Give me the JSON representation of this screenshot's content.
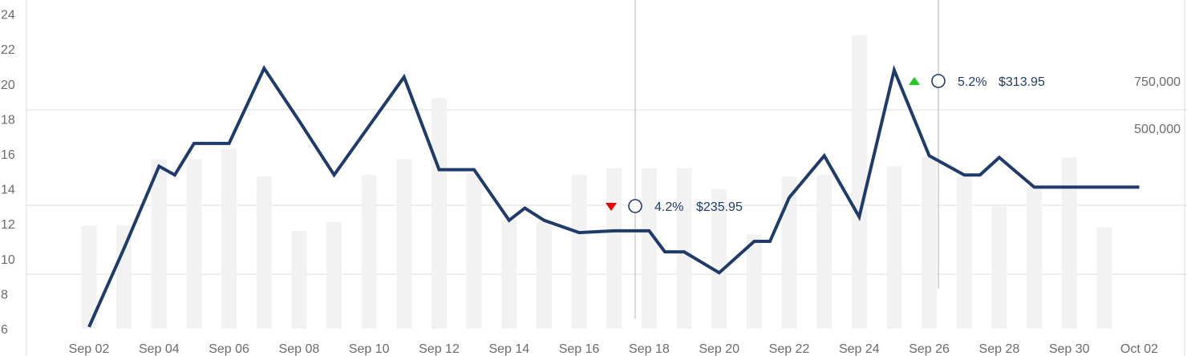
{
  "chart_data": {
    "type": "line",
    "title": "",
    "xlabel": "",
    "ylabel": "",
    "ylim": [
      6,
      24
    ],
    "y_ticks": [
      6,
      8,
      10,
      12,
      14,
      16,
      18,
      20,
      22,
      24
    ],
    "volume_ticks": [
      "750,000",
      "500,000"
    ],
    "grid": true,
    "x_tick_labels": [
      "Sep 02",
      "Sep 04",
      "Sep 06",
      "Sep 08",
      "Sep 10",
      "Sep 12",
      "Sep 14",
      "Sep 16",
      "Sep 18",
      "Sep 20",
      "Sep 22",
      "Sep 24",
      "Sep 26",
      "Sep 28",
      "Sep 30",
      "Oct 02"
    ],
    "colors": {
      "line": "#1f3b6b",
      "bar": "#f2f2f2",
      "grid": "#dcdcdc",
      "crosshair": "#cccccc",
      "up": "#22cc22",
      "down": "#ee0000",
      "tick_text": "#6b6b6b"
    },
    "price_series": {
      "x": [
        "Sep 02",
        "Sep 03",
        "Sep 04",
        "Sep 04 mid",
        "Sep 05",
        "Sep 06",
        "Sep 07",
        "Sep 08",
        "Sep 09",
        "Sep 10",
        "Sep 11",
        "Sep 12",
        "Sep 13",
        "Sep 14",
        "Sep 14 mid",
        "Sep 15",
        "Sep 16",
        "Sep 17",
        "Sep 18",
        "Sep 18 mid",
        "Sep 19",
        "Sep 20",
        "Sep 21",
        "Sep 21 mid",
        "Sep 22",
        "Sep 23",
        "Sep 24",
        "Sep 25",
        "Sep 26",
        "Sep 27",
        "Sep 27 mid",
        "Sep 28",
        "Sep 29",
        "Sep 30",
        "Oct 01",
        "Oct 02"
      ],
      "values": [
        6.1,
        10.6,
        15.3,
        14.8,
        16.6,
        16.6,
        20.9,
        17.9,
        14.8,
        17.6,
        20.4,
        15.1,
        15.1,
        12.2,
        12.9,
        12.2,
        11.5,
        11.6,
        11.6,
        10.4,
        10.4,
        9.2,
        11.0,
        11.0,
        13.5,
        15.9,
        12.4,
        20.8,
        15.9,
        14.8,
        14.8,
        15.8,
        14.1,
        14.1,
        14.1,
        14.1
      ]
    },
    "volume_series": {
      "x": [
        "Sep 02",
        "Sep 03",
        "Sep 04",
        "Sep 05",
        "Sep 06",
        "Sep 07",
        "Sep 08",
        "Sep 09",
        "Sep 10",
        "Sep 11",
        "Sep 12",
        "Sep 13",
        "Sep 14",
        "Sep 15",
        "Sep 16",
        "Sep 17",
        "Sep 18",
        "Sep 19",
        "Sep 20",
        "Sep 21",
        "Sep 22",
        "Sep 23",
        "Sep 24",
        "Sep 25",
        "Sep 26",
        "Sep 27",
        "Sep 28",
        "Sep 29",
        "Sep 30",
        "Oct 01"
      ],
      "values": [
        11.9,
        11.9,
        15.7,
        15.7,
        16.3,
        14.7,
        11.6,
        12.1,
        14.8,
        15.7,
        19.2,
        14.9,
        12.2,
        12.1,
        14.8,
        15.2,
        15.2,
        15.2,
        14.0,
        11.4,
        14.7,
        14.8,
        22.8,
        15.3,
        15.8,
        14.7,
        13.0,
        14.1,
        15.8,
        11.8
      ]
    },
    "annotations": [
      {
        "direction": "down",
        "percent": "4.2%",
        "price": "$235.95",
        "date": "Sep 18"
      },
      {
        "direction": "up",
        "percent": "5.2%",
        "price": "$313.95",
        "date": "Sep 26"
      }
    ]
  }
}
